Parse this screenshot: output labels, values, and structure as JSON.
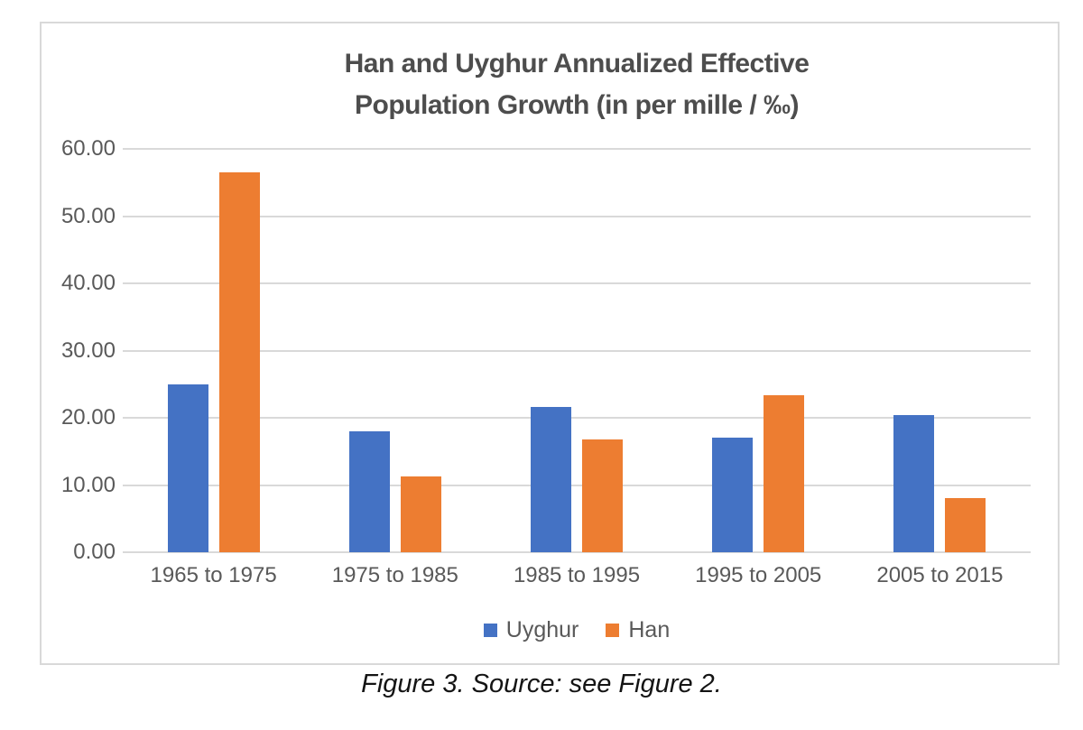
{
  "figure": {
    "caption": "Figure 3. Source: see Figure 2."
  },
  "chart_data": {
    "type": "bar",
    "title": "Han and Uyghur Annualized Effective Population Growth (in per mille / ‰)",
    "title_lines": [
      "Han and Uyghur Annualized Effective",
      "Population Growth (in per mille / ‰)"
    ],
    "categories": [
      "1965 to 1975",
      "1975 to 1985",
      "1985 to 1995",
      "1995 to 2005",
      "2005 to 2015"
    ],
    "series": [
      {
        "name": "Uyghur",
        "color": "#4472C4",
        "values": [
          25.0,
          18.0,
          21.6,
          17.1,
          20.4
        ]
      },
      {
        "name": "Han",
        "color": "#ED7D31",
        "values": [
          56.5,
          11.3,
          16.8,
          23.3,
          8.0
        ]
      }
    ],
    "ylim": [
      0,
      60
    ],
    "yticks": [
      {
        "value": 0,
        "label": "0.00"
      },
      {
        "value": 10,
        "label": "10.00"
      },
      {
        "value": 20,
        "label": "20.00"
      },
      {
        "value": 30,
        "label": "30.00"
      },
      {
        "value": 40,
        "label": "40.00"
      },
      {
        "value": 50,
        "label": "50.00"
      },
      {
        "value": 60,
        "label": "60.00"
      }
    ],
    "grid": "horizontal",
    "gridline_color": "#d9d9d9",
    "legend_position": "bottom",
    "xlabel": "",
    "ylabel": ""
  }
}
